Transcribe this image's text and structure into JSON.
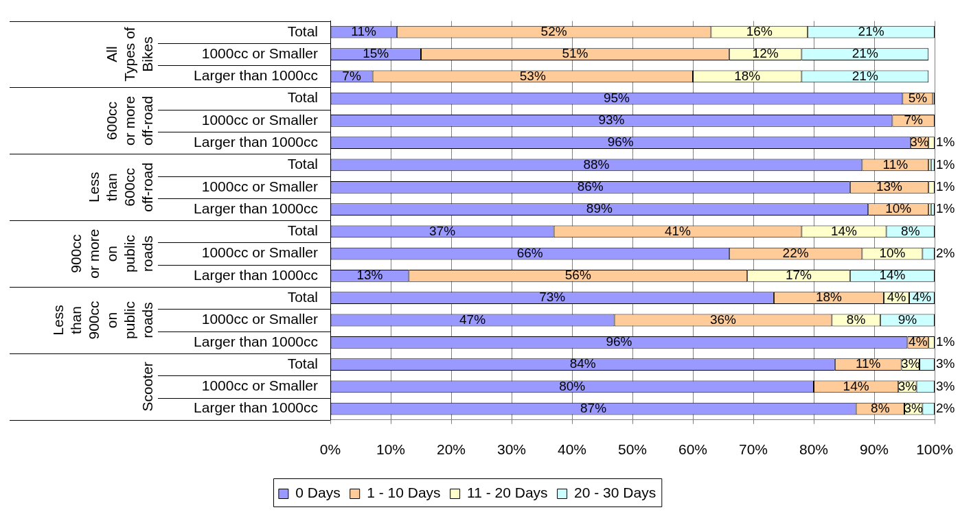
{
  "chart_data": {
    "type": "bar",
    "orientation": "horizontal",
    "stacked": true,
    "categories": [
      "Total",
      "1000cc or Smaller",
      "Larger than 1000cc",
      "Total",
      "1000cc or Smaller",
      "Larger than 1000cc",
      "Total",
      "1000cc or Smaller",
      "Larger than 1000cc",
      "Total",
      "1000cc or Smaller",
      "Larger than 1000cc",
      "Total",
      "1000cc or Smaller",
      "Larger than 1000cc",
      "Total",
      "1000cc or Smaller",
      "Larger than 1000cc"
    ],
    "annotations": [
      "All Types of Bikes",
      "600cc or more off-road",
      "Less than 600cc off-road",
      "900cc or more on public roads",
      "Less than 900cc on public roads",
      "Scooter"
    ],
    "series": [
      {
        "name": "0 Days",
        "color": "#9999ff",
        "values": [
          11,
          15,
          7,
          94.7,
          93,
          96,
          88,
          86,
          89,
          37,
          66,
          13,
          73.4,
          47,
          95.5,
          83.5,
          80,
          87
        ],
        "value_labels": [
          "11%",
          "15%",
          "7%",
          "95%",
          "93%",
          "96%",
          "88%",
          "86%",
          "89%",
          "37%",
          "66%",
          "13%",
          "73%",
          "47%",
          "96%",
          "84%",
          "80%",
          "87%"
        ]
      },
      {
        "name": "1 - 10 Days",
        "color": "#ffcc99",
        "values": [
          52,
          51,
          53,
          5,
          7,
          3,
          11,
          13,
          10,
          41,
          22,
          56,
          18.2,
          36,
          3.5,
          11,
          14,
          8
        ],
        "value_labels": [
          "52%",
          "51%",
          "53%",
          "5%",
          "7%",
          "3%",
          "11%",
          "13%",
          "10%",
          "41%",
          "22%",
          "56%",
          "18%",
          "36%",
          "4%",
          "11%",
          "14%",
          "8%"
        ]
      },
      {
        "name": "11 - 20 Days",
        "color": "#ffffcc",
        "values": [
          16,
          12,
          18,
          0.3,
          0,
          1,
          0.4,
          1,
          0.4,
          14,
          10,
          17,
          4.2,
          8,
          1,
          3,
          3,
          3
        ],
        "value_labels": [
          "16%",
          "12%",
          "18%",
          null,
          null,
          "1%",
          null,
          "1%",
          null,
          "14%",
          "10%",
          "17%",
          "4%",
          "8%",
          "1%",
          "3%",
          "3%",
          "3%"
        ]
      },
      {
        "name": "20 - 30 Days",
        "color": "#ccffff",
        "values": [
          21,
          21,
          21,
          0,
          0,
          0,
          0.6,
          0,
          0.6,
          8,
          2,
          14,
          4.2,
          9,
          0,
          2.5,
          3,
          2
        ],
        "value_labels": [
          "21%",
          "21%",
          "21%",
          null,
          null,
          null,
          "1%",
          null,
          "1%",
          "8%",
          "2%",
          "14%",
          "4%",
          "9%",
          null,
          "3%",
          "3%",
          "2%"
        ]
      }
    ],
    "xlim": [
      0,
      100
    ],
    "xticks": [
      {
        "value": 0,
        "label": "0%"
      },
      {
        "value": 10,
        "label": "10%"
      },
      {
        "value": 20,
        "label": "20%"
      },
      {
        "value": 30,
        "label": "30%"
      },
      {
        "value": 40,
        "label": "40%"
      },
      {
        "value": 50,
        "label": "50%"
      },
      {
        "value": 60,
        "label": "60%"
      },
      {
        "value": 70,
        "label": "70%"
      },
      {
        "value": 80,
        "label": "80%"
      },
      {
        "value": 90,
        "label": "90%"
      },
      {
        "value": 100,
        "label": "100%"
      }
    ],
    "grid": "x",
    "legend": "bottom"
  }
}
